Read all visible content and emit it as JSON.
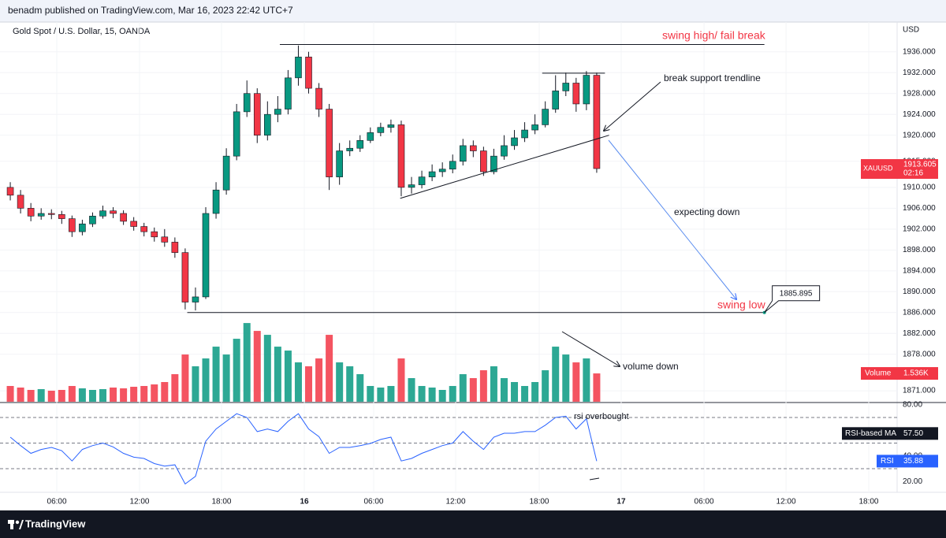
{
  "header": {
    "text": "benadm published on TradingView.com, Mar 16, 2023 22:42 UTC+7"
  },
  "footer": {
    "brand": "TradingView"
  },
  "chart_data": {
    "type": "candlestick",
    "title": "Gold Spot / U.S. Dollar, 15, OANDA",
    "currency": "USD",
    "symbol": "XAUUSD",
    "countdown": "02:16",
    "up_color": "#089981",
    "down_color": "#f23645",
    "grid": true,
    "xlim": [
      -1,
      86.2
    ],
    "xticks": [
      {
        "value": 4.52,
        "label": "06:00"
      },
      {
        "value": 12.56,
        "label": "12:00"
      },
      {
        "value": 20.53,
        "label": "18:00"
      },
      {
        "value": 28.58,
        "label": "16"
      },
      {
        "value": 35.32,
        "label": "06:00"
      },
      {
        "value": 43.29,
        "label": "12:00"
      },
      {
        "value": 51.41,
        "label": "18:00"
      },
      {
        "value": 59.38,
        "label": "17"
      },
      {
        "value": 67.43,
        "label": "06:00"
      },
      {
        "value": 75.4,
        "label": "12:00"
      },
      {
        "value": 83.44,
        "label": "18:00"
      }
    ],
    "ylim": [
      1868.9,
      1941.7
    ],
    "yticks": [
      {
        "value": 1871,
        "label": "1871.000"
      },
      {
        "value": 1878,
        "label": "1878.000"
      },
      {
        "value": 1882,
        "label": "1882.000"
      },
      {
        "value": 1886,
        "label": "1886.000"
      },
      {
        "value": 1890,
        "label": "1890.000"
      },
      {
        "value": 1894,
        "label": "1894.000"
      },
      {
        "value": 1898,
        "label": "1898.000"
      },
      {
        "value": 1902,
        "label": "1902.000"
      },
      {
        "value": 1906,
        "label": "1906.000"
      },
      {
        "value": 1910,
        "label": "1910.000"
      },
      {
        "value": 1915,
        "label": "1915.000"
      },
      {
        "value": 1920,
        "label": "1920.000"
      },
      {
        "value": 1924,
        "label": "1924.000"
      },
      {
        "value": 1928,
        "label": "1928.000"
      },
      {
        "value": 1932,
        "label": "1932.000"
      },
      {
        "value": 1936,
        "label": "1936.000"
      }
    ],
    "open": [
      1910,
      1908.5,
      1906,
      1904.5,
      1905,
      1904.8,
      1904,
      1901.5,
      1903,
      1904.5,
      1905.5,
      1905,
      1903.5,
      1902.5,
      1901.5,
      1900.5,
      1899.5,
      1897.5,
      1888,
      1889,
      1905,
      1909.5,
      1916,
      1924.5,
      1928,
      1920,
      1924,
      1925,
      1931,
      1935,
      1929,
      1925,
      1912,
      1917,
      1917.5,
      1919,
      1920.5,
      1921.5,
      1922,
      1910,
      1910.5,
      1912,
      1913,
      1913.5,
      1915,
      1918,
      1917,
      1913,
      1916,
      1918,
      1919.5,
      1921,
      1922,
      1925,
      1928.5,
      1930,
      1926,
      1931.5
    ],
    "high": [
      1911,
      1909.5,
      1907,
      1906,
      1905.8,
      1905.5,
      1904.6,
      1903.8,
      1905.2,
      1906.5,
      1906.2,
      1905.6,
      1904.3,
      1903.2,
      1902.3,
      1902,
      1900.4,
      1898.3,
      1890.8,
      1906.2,
      1911,
      1917.5,
      1926,
      1930.5,
      1929,
      1926.5,
      1927.5,
      1932.5,
      1937.2,
      1936,
      1930,
      1926,
      1918.5,
      1919,
      1920,
      1921.5,
      1922.4,
      1923,
      1922.8,
      1912,
      1913.2,
      1914.4,
      1914.8,
      1916.3,
      1919.3,
      1919,
      1917.8,
      1917.4,
      1920,
      1921,
      1922.5,
      1924,
      1926.5,
      1931.5,
      1932,
      1931,
      1932.3,
      1932
    ],
    "low": [
      1907.5,
      1905,
      1903.5,
      1903.8,
      1903.9,
      1903,
      1900.5,
      1900.8,
      1902.4,
      1904,
      1904.1,
      1902.8,
      1901.7,
      1900.6,
      1899.6,
      1898.6,
      1896.5,
      1886.6,
      1886.4,
      1888.6,
      1904,
      1908.6,
      1915.2,
      1923.5,
      1918.5,
      1919,
      1922.5,
      1924,
      1929.5,
      1928,
      1923.5,
      1909.5,
      1910.5,
      1916,
      1916.8,
      1918.5,
      1919.8,
      1920.5,
      1908.3,
      1908.8,
      1909.8,
      1911.2,
      1912,
      1912.7,
      1914.2,
      1915.8,
      1912.2,
      1912.5,
      1915.3,
      1917.2,
      1918.7,
      1920.2,
      1921.5,
      1924.3,
      1927.5,
      1924.5,
      1924.8,
      1912.8
    ],
    "close": [
      1908.5,
      1906,
      1904.5,
      1905,
      1904.8,
      1904,
      1901.5,
      1903,
      1904.5,
      1905.5,
      1905,
      1903.5,
      1902.5,
      1901.5,
      1900.5,
      1899.5,
      1897.5,
      1888,
      1889,
      1905,
      1909.5,
      1916,
      1924.5,
      1928,
      1920,
      1924,
      1925,
      1931,
      1935,
      1929,
      1925,
      1912,
      1917,
      1917.5,
      1919,
      1920.5,
      1921.5,
      1922,
      1910,
      1910.5,
      1912,
      1913,
      1913.5,
      1915,
      1918,
      1917,
      1913,
      1916,
      1918,
      1919.5,
      1921,
      1922,
      1925,
      1928.5,
      1930,
      1926,
      1931.5,
      1913.605
    ],
    "volume": {
      "name": "Volume",
      "ylim": [
        0,
        20600
      ],
      "values": [
        854,
        769,
        641,
        683,
        598,
        641,
        854,
        726,
        641,
        683,
        769,
        726,
        811,
        854,
        939,
        1068,
        1495,
        2562,
        1922,
        2349,
        2989,
        2562,
        3416,
        4270,
        3843,
        3630,
        2989,
        2776,
        2135,
        1922,
        2349,
        3630,
        2135,
        1922,
        1495,
        854,
        769,
        854,
        2349,
        1281,
        854,
        769,
        641,
        854,
        1495,
        1281,
        1708,
        1922,
        1281,
        1068,
        854,
        1068,
        1708,
        2989,
        2562,
        2135,
        2349,
        1536
      ],
      "value_labels": [
        null,
        null,
        null,
        null,
        null,
        null,
        null,
        null,
        null,
        null,
        null,
        null,
        null,
        null,
        null,
        null,
        null,
        null,
        null,
        null,
        null,
        null,
        null,
        null,
        null,
        null,
        null,
        null,
        null,
        null,
        null,
        null,
        null,
        null,
        null,
        null,
        null,
        null,
        null,
        null,
        null,
        null,
        null,
        null,
        null,
        null,
        null,
        null,
        null,
        null,
        null,
        null,
        null,
        null,
        null,
        null,
        null,
        "1.536K"
      ]
    },
    "rsi": {
      "name": "RSI",
      "color": "#2962ff",
      "ylim": [
        11.5,
        81.1
      ],
      "yticks": [
        {
          "value": 80,
          "label": "80.00"
        },
        {
          "value": 40,
          "label": "40.00"
        },
        {
          "value": 20,
          "label": "20.00"
        }
      ],
      "levels": [
        70,
        50,
        30
      ],
      "values": [
        54.6,
        48,
        42,
        45,
        46.6,
        44,
        36,
        45,
        48,
        50,
        47,
        42,
        39,
        38,
        34,
        32,
        33,
        18,
        24,
        51.5,
        61,
        67,
        73,
        70,
        59,
        61,
        59,
        67,
        73,
        61,
        55,
        42,
        46.6,
        46.6,
        48,
        49.7,
        52.8,
        54.6,
        36,
        38,
        42,
        45,
        48,
        50,
        59,
        51.5,
        45,
        54.6,
        57.7,
        57.7,
        59,
        59,
        64,
        70,
        71,
        61,
        69,
        35.88
      ],
      "ma_name": "RSI-based MA",
      "ma": {
        "value": 57.5,
        "label": "57.50"
      }
    },
    "lines": [
      {
        "x": [
          26.2,
          73.3
        ],
        "y": [
          1937.4,
          1937.4
        ]
      },
      {
        "x": [
          17.2,
          73.3
        ],
        "y": [
          1886,
          1886
        ]
      },
      {
        "x": [
          51.7,
          57.8
        ],
        "y": [
          1931.9,
          1931.9
        ]
      },
      {
        "x": [
          37.9,
          58.2
        ],
        "y": [
          1907.9,
          1920
        ]
      }
    ],
    "callout": 1885.895,
    "notes": [
      {
        "text": "swing high/ fail break",
        "color": "#f23645"
      },
      {
        "text": "break support trendline",
        "color": "#131722"
      },
      {
        "text": "expecting down",
        "color": "#131722"
      },
      {
        "text": "swing low",
        "color": "#f23645"
      },
      {
        "text": "volume down",
        "color": "#131722"
      },
      {
        "text": "rsi overbought",
        "color": "#131722"
      }
    ]
  }
}
